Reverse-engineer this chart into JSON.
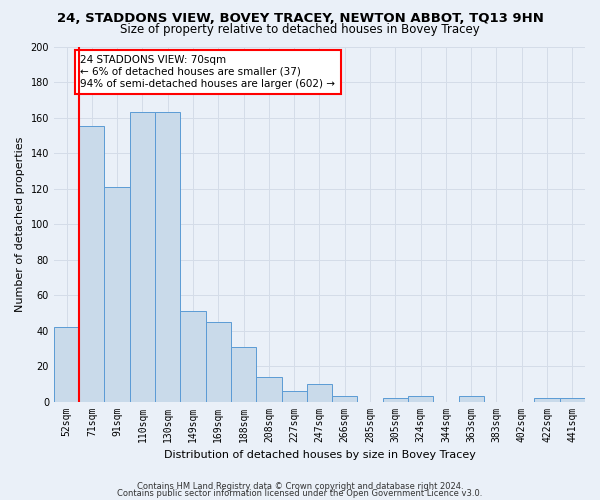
{
  "title": "24, STADDONS VIEW, BOVEY TRACEY, NEWTON ABBOT, TQ13 9HN",
  "subtitle": "Size of property relative to detached houses in Bovey Tracey",
  "xlabel": "Distribution of detached houses by size in Bovey Tracey",
  "ylabel": "Number of detached properties",
  "footer1": "Contains HM Land Registry data © Crown copyright and database right 2024.",
  "footer2": "Contains public sector information licensed under the Open Government Licence v3.0.",
  "categories": [
    "52sqm",
    "71sqm",
    "91sqm",
    "110sqm",
    "130sqm",
    "149sqm",
    "169sqm",
    "188sqm",
    "208sqm",
    "227sqm",
    "247sqm",
    "266sqm",
    "285sqm",
    "305sqm",
    "324sqm",
    "344sqm",
    "363sqm",
    "383sqm",
    "402sqm",
    "422sqm",
    "441sqm"
  ],
  "values": [
    42,
    155,
    121,
    163,
    163,
    51,
    45,
    31,
    14,
    6,
    10,
    3,
    0,
    2,
    3,
    0,
    3,
    0,
    0,
    2,
    2
  ],
  "bar_color": "#c9daea",
  "bar_edge_color": "#5b9bd5",
  "vline_color": "#ff0000",
  "vline_x_index": 1,
  "annotation_text": "24 STADDONS VIEW: 70sqm\n← 6% of detached houses are smaller (37)\n94% of semi-detached houses are larger (602) →",
  "annotation_box_color": "#ffffff",
  "annotation_box_edge_color": "#ff0000",
  "ylim": [
    0,
    200
  ],
  "yticks": [
    0,
    20,
    40,
    60,
    80,
    100,
    120,
    140,
    160,
    180,
    200
  ],
  "grid_color": "#d4dce8",
  "background_color": "#eaf0f8",
  "title_fontsize": 9.5,
  "subtitle_fontsize": 8.5,
  "ylabel_fontsize": 8,
  "xlabel_fontsize": 8,
  "tick_fontsize": 7,
  "annotation_fontsize": 7.5,
  "footer_fontsize": 6
}
